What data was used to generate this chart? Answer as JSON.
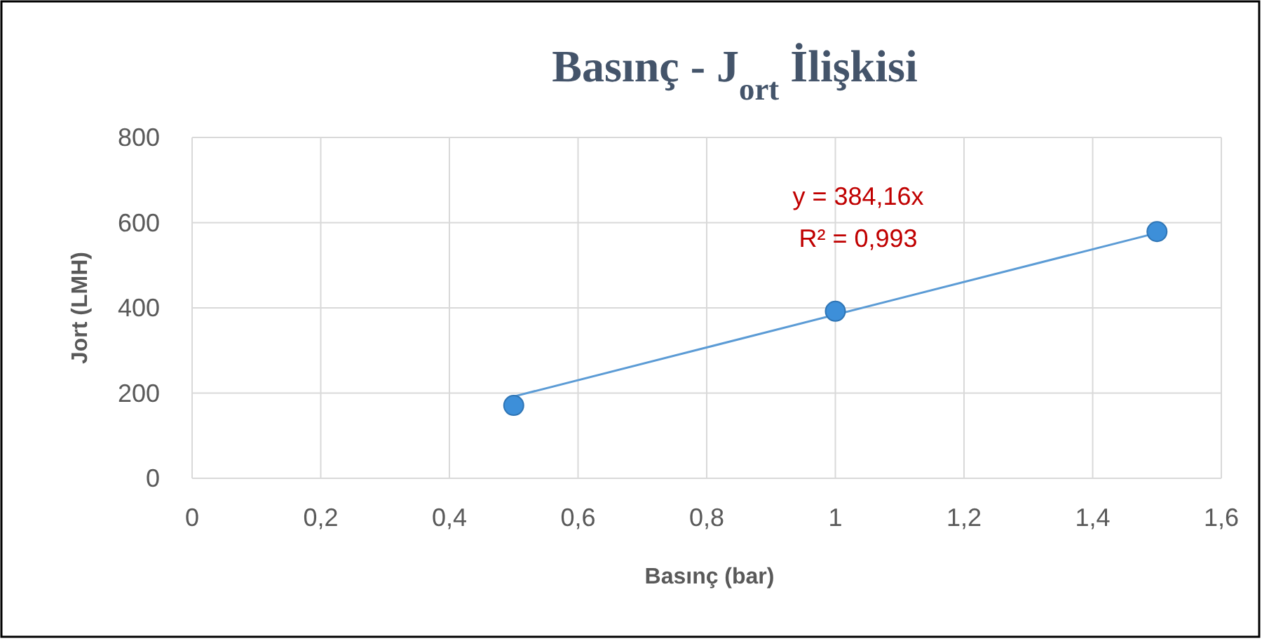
{
  "chart_data": {
    "type": "scatter",
    "title": "Basınç - J$_{ort}$ İlişkisi",
    "xlabel": "Basınç (bar)",
    "ylabel": "Jort (LMH)",
    "xlim": [
      0,
      1.6
    ],
    "xticks": [
      0,
      {
        "value": 0.2,
        "label": "0,2"
      },
      {
        "value": 0.4,
        "label": "0,4"
      },
      {
        "value": 0.6,
        "label": "0,6"
      },
      {
        "value": 0.8,
        "label": "0,8"
      },
      1,
      {
        "value": 1.2,
        "label": "1,2"
      },
      {
        "value": 1.4,
        "label": "1,4"
      },
      {
        "value": 1.6,
        "label": "1,6"
      }
    ],
    "ylim": [
      0,
      800
    ],
    "yticks": [
      0,
      200,
      400,
      600,
      800
    ],
    "grid": true,
    "marker": "circle",
    "series": [
      {
        "color": "#3d8fd9",
        "x": [
          0.5,
          1,
          1.5
        ],
        "values": [
          171,
          392,
          579
        ]
      },
      {
        "type": "line",
        "color": "#5b9bd5",
        "x": [
          0.5,
          1.5
        ],
        "values": [
          192,
          576
        ],
        "marker": "none"
      }
    ],
    "annotations": [
      "y = 384,16x",
      "R² = 0,993"
    ]
  }
}
